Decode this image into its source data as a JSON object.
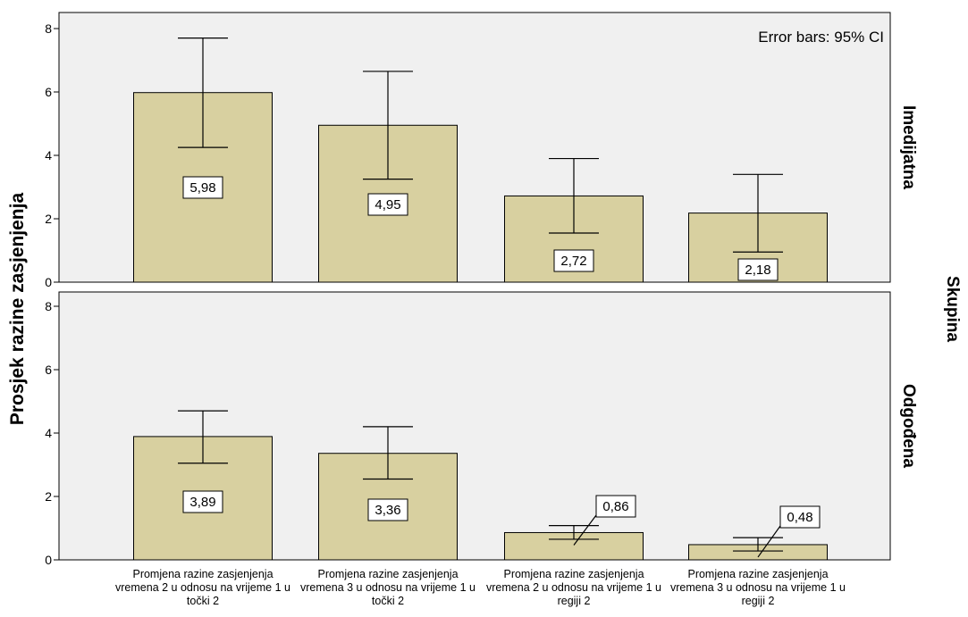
{
  "chart_data": {
    "type": "bar",
    "ylabel": "Prosjek razine zasjenjenja",
    "facet_title": "Skupina",
    "annotation": "Error bars: 95% CI",
    "categories": [
      "Promjena razine zasjenjenja vremena 2 u odnosu na vrijeme 1 u točki 2",
      "Promjena razine zasjenjenja vremena 3 u odnosu na vrijeme 1 u točki 2",
      "Promjena razine zasjenjenja vremena 2 u odnosu na vrijeme 1 u regiji 2",
      "Promjena razine zasjenjenja vremena 3 u odnosu na vrijeme 1 u regiji 2"
    ],
    "ylim": [
      0,
      8
    ],
    "yticks": [
      0,
      2,
      4,
      6,
      8
    ],
    "bar_color": "#d8d0a0",
    "panel_color": "#f0f0f0",
    "panels": [
      {
        "name": "Imedijatna",
        "values": [
          5.98,
          4.95,
          2.72,
          2.18
        ],
        "labels": [
          "5,98",
          "4,95",
          "2,72",
          "2,18"
        ],
        "ci_low": [
          4.25,
          3.25,
          1.55,
          0.95
        ],
        "ci_high": [
          7.7,
          6.65,
          3.9,
          3.4
        ]
      },
      {
        "name": "Odgođena",
        "values": [
          3.89,
          3.36,
          0.86,
          0.48
        ],
        "labels": [
          "3,89",
          "3,36",
          "0,86",
          "0,48"
        ],
        "ci_low": [
          3.05,
          2.55,
          0.65,
          0.28
        ],
        "ci_high": [
          4.7,
          4.2,
          1.08,
          0.7
        ]
      }
    ]
  }
}
